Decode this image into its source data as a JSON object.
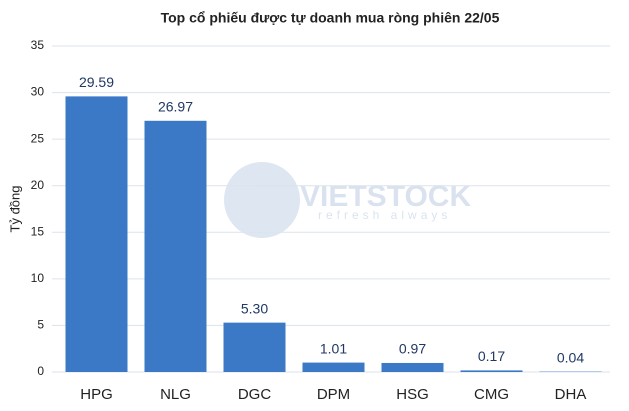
{
  "chart_data": {
    "type": "bar",
    "title": "Top cổ phiếu được tự doanh mua ròng phiên 22/05",
    "y_label": "Tỷ đồng",
    "categories": [
      "HPG",
      "NLG",
      "DGC",
      "DPM",
      "HSG",
      "CMG",
      "DHA"
    ],
    "values": [
      29.59,
      26.97,
      5.3,
      1.01,
      0.97,
      0.17,
      0.04
    ],
    "value_labels": [
      "29.59",
      "26.97",
      "5.30",
      "1.01",
      "0.97",
      "0.17",
      "0.04"
    ],
    "color": "#3b78c6",
    "ylim": [
      0,
      35
    ],
    "yticks": [
      0,
      5,
      10,
      15,
      20,
      25,
      30,
      35
    ],
    "grid": true,
    "annotations": [
      "VIETSTOCK",
      "refresh always"
    ]
  }
}
